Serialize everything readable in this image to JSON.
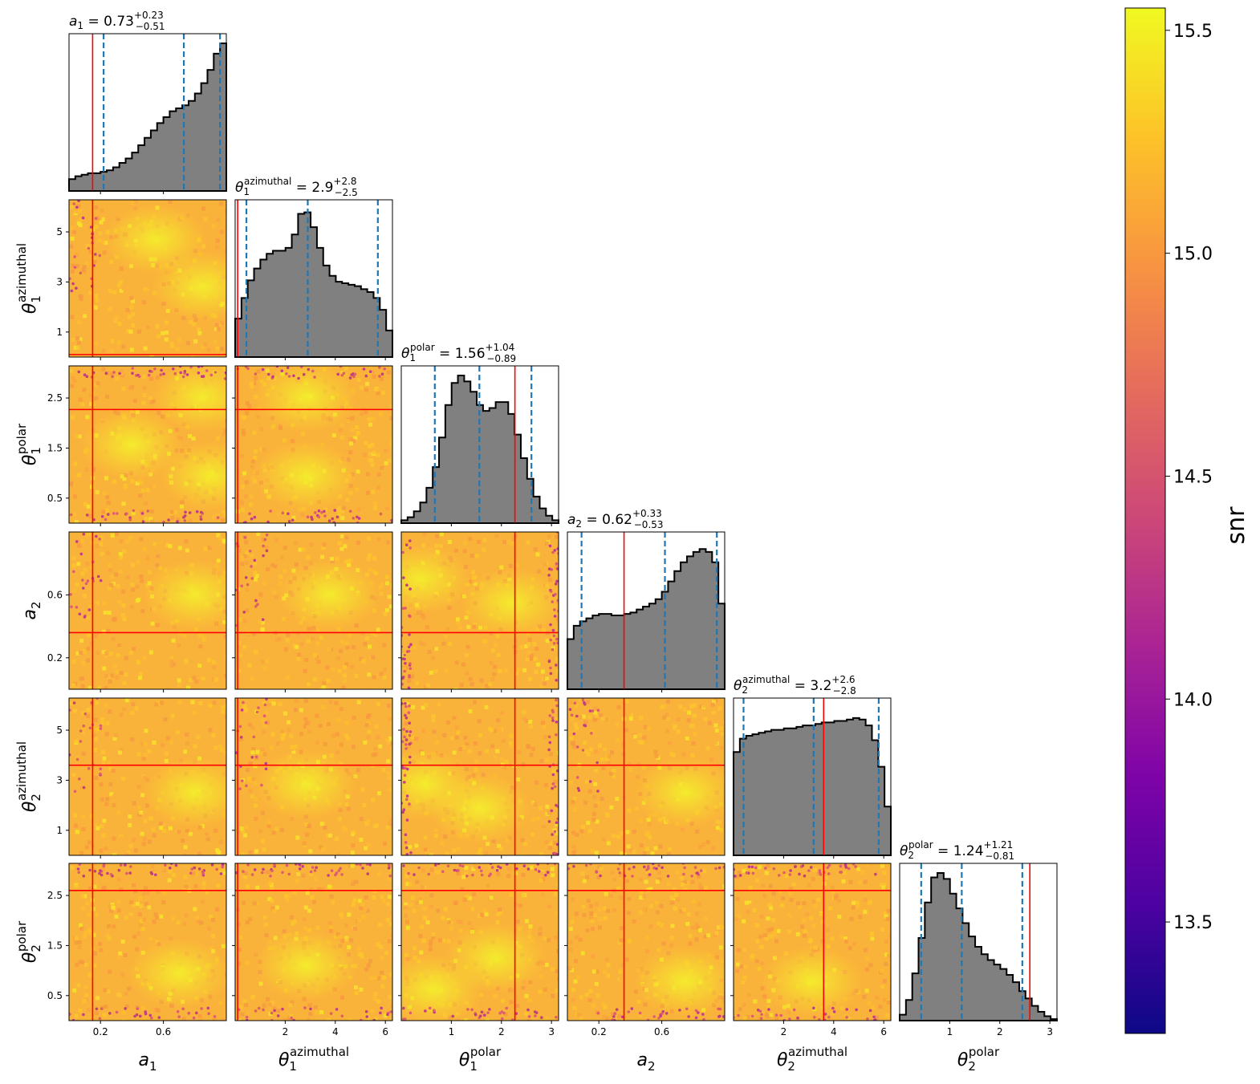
{
  "chart_data": {
    "type": "corner",
    "parameters": [
      {
        "id": "a1",
        "sym": "a",
        "sub": "1",
        "sup": "",
        "label": "a₁",
        "median": "0.73",
        "plus": "+0.23",
        "minus": "−0.51",
        "range": [
          0,
          1
        ],
        "truth": 0.15,
        "quantiles": [
          0.22,
          0.73,
          0.96
        ],
        "yticks": [],
        "xticks": [
          "0.2",
          "0.6"
        ],
        "xtick_vals": [
          0.2,
          0.6
        ]
      },
      {
        "id": "theta1_az",
        "sym": "θ",
        "sub": "1",
        "sup": "azimuthal",
        "label": "θ₁^azimuthal",
        "median": "2.9",
        "plus": "+2.8",
        "minus": "−2.5",
        "range": [
          0,
          6.283
        ],
        "truth": 0.1,
        "quantiles": [
          0.45,
          2.9,
          5.7
        ],
        "yticks": [
          "1",
          "3",
          "5"
        ],
        "ytick_vals": [
          1,
          3,
          5
        ],
        "xticks": [
          "2",
          "4",
          "6"
        ],
        "xtick_vals": [
          2,
          4,
          6
        ]
      },
      {
        "id": "theta1_pol",
        "sym": "θ",
        "sub": "1",
        "sup": "polar",
        "label": "θ₁^polar",
        "median": "1.56",
        "plus": "+1.04",
        "minus": "−0.89",
        "range": [
          0,
          3.1416
        ],
        "truth": 2.27,
        "quantiles": [
          0.67,
          1.56,
          2.6
        ],
        "yticks": [
          "0.5",
          "1.5",
          "2.5"
        ],
        "ytick_vals": [
          0.5,
          1.5,
          2.5
        ],
        "xticks": [
          "1",
          "2",
          "3"
        ],
        "xtick_vals": [
          1,
          2,
          3
        ]
      },
      {
        "id": "a2",
        "sym": "a",
        "sub": "2",
        "sup": "",
        "label": "a₂",
        "median": "0.62",
        "plus": "+0.33",
        "minus": "−0.53",
        "range": [
          0,
          1
        ],
        "truth": 0.36,
        "quantiles": [
          0.09,
          0.62,
          0.95
        ],
        "yticks": [
          "0.2",
          "0.6"
        ],
        "ytick_vals": [
          0.2,
          0.6
        ],
        "xticks": [
          "0.2",
          "0.6"
        ],
        "xtick_vals": [
          0.2,
          0.6
        ]
      },
      {
        "id": "theta2_az",
        "sym": "θ",
        "sub": "2",
        "sup": "azimuthal",
        "label": "θ₂^azimuthal",
        "median": "3.2",
        "plus": "+2.6",
        "minus": "−2.8",
        "range": [
          0,
          6.283
        ],
        "truth": 3.6,
        "quantiles": [
          0.4,
          3.2,
          5.8
        ],
        "yticks": [
          "1",
          "3",
          "5"
        ],
        "ytick_vals": [
          1,
          3,
          5
        ],
        "xticks": [
          "2",
          "4",
          "6"
        ],
        "xtick_vals": [
          2,
          4,
          6
        ]
      },
      {
        "id": "theta2_pol",
        "sym": "θ",
        "sub": "2",
        "sup": "polar",
        "label": "θ₂^polar",
        "median": "1.24",
        "plus": "+1.21",
        "minus": "−0.81",
        "range": [
          0,
          3.1416
        ],
        "truth": 2.6,
        "quantiles": [
          0.43,
          1.24,
          2.45
        ],
        "yticks": [
          "0.5",
          "1.5",
          "2.5"
        ],
        "ytick_vals": [
          0.5,
          1.5,
          2.5
        ],
        "xticks": [
          "1",
          "2",
          "3"
        ],
        "xtick_vals": [
          1,
          2,
          3
        ]
      }
    ],
    "histograms": {
      "a1": [
        0.08,
        0.1,
        0.11,
        0.12,
        0.12,
        0.13,
        0.14,
        0.16,
        0.19,
        0.22,
        0.26,
        0.31,
        0.36,
        0.41,
        0.46,
        0.5,
        0.54,
        0.56,
        0.58,
        0.61,
        0.66,
        0.73,
        0.82,
        0.93,
        1.0
      ],
      "theta1_az": [
        0.26,
        0.4,
        0.52,
        0.6,
        0.66,
        0.7,
        0.72,
        0.72,
        0.74,
        0.83,
        0.97,
        0.98,
        0.88,
        0.74,
        0.62,
        0.55,
        0.51,
        0.5,
        0.49,
        0.48,
        0.46,
        0.44,
        0.4,
        0.32,
        0.18
      ],
      "theta1_pol": [
        0.02,
        0.04,
        0.08,
        0.14,
        0.24,
        0.38,
        0.58,
        0.8,
        0.95,
        1.0,
        0.96,
        0.89,
        0.8,
        0.76,
        0.78,
        0.82,
        0.82,
        0.74,
        0.6,
        0.44,
        0.3,
        0.18,
        0.1,
        0.05,
        0.02
      ],
      "a2": [
        0.34,
        0.43,
        0.46,
        0.48,
        0.5,
        0.51,
        0.51,
        0.5,
        0.5,
        0.51,
        0.52,
        0.54,
        0.56,
        0.58,
        0.61,
        0.66,
        0.73,
        0.8,
        0.86,
        0.9,
        0.93,
        0.95,
        0.93,
        0.86,
        0.58
      ],
      "theta2_az": [
        0.7,
        0.79,
        0.81,
        0.82,
        0.83,
        0.84,
        0.85,
        0.85,
        0.86,
        0.86,
        0.87,
        0.88,
        0.88,
        0.89,
        0.9,
        0.9,
        0.91,
        0.91,
        0.92,
        0.93,
        0.92,
        0.88,
        0.78,
        0.6,
        0.33
      ],
      "theta2_pol": [
        0.04,
        0.14,
        0.32,
        0.56,
        0.8,
        0.97,
        1.0,
        0.96,
        0.86,
        0.76,
        0.66,
        0.57,
        0.5,
        0.45,
        0.41,
        0.38,
        0.35,
        0.31,
        0.26,
        0.2,
        0.15,
        0.1,
        0.06,
        0.03,
        0.01
      ]
    },
    "colorbar": {
      "label": "snr",
      "range": [
        13.25,
        15.55
      ],
      "ticks": [
        13.5,
        14.0,
        14.5,
        15.0,
        15.5
      ],
      "tick_labels": [
        "13.5",
        "14.0",
        "14.5",
        "15.0",
        "15.5"
      ],
      "colormap": "plasma"
    },
    "colors": {
      "truth_line": "#ff0000",
      "quantile_line": "#1f77b4",
      "histogram_fill": "#808080",
      "histogram_edge": "#000000"
    }
  }
}
